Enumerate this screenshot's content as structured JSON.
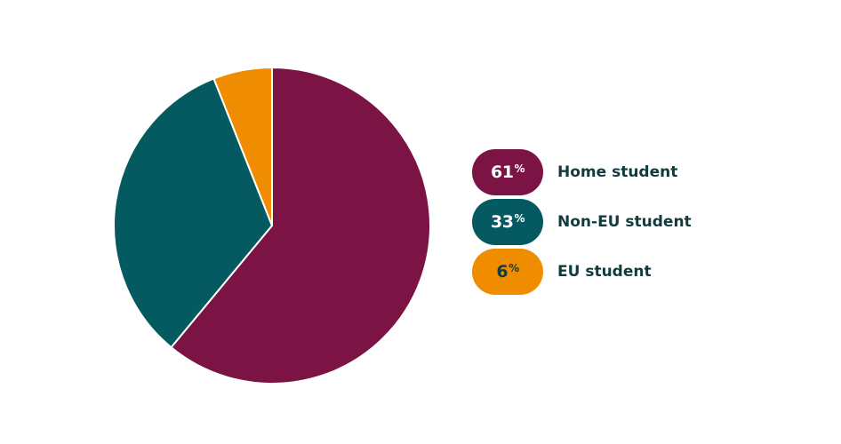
{
  "chart_data": {
    "type": "pie",
    "title": "",
    "slices": [
      {
        "label": "Home student",
        "value": 61,
        "display": "61",
        "unit": "%",
        "color": "#7b1445",
        "text_color": "#ffffff"
      },
      {
        "label": "Non-EU student",
        "value": 33,
        "display": "33",
        "unit": "%",
        "color": "#045a60",
        "text_color": "#ffffff"
      },
      {
        "label": "EU student",
        "value": 6,
        "display": "6",
        "unit": "%",
        "color": "#f08c00",
        "text_color": "#123b3d"
      }
    ],
    "legend_position": "right"
  }
}
